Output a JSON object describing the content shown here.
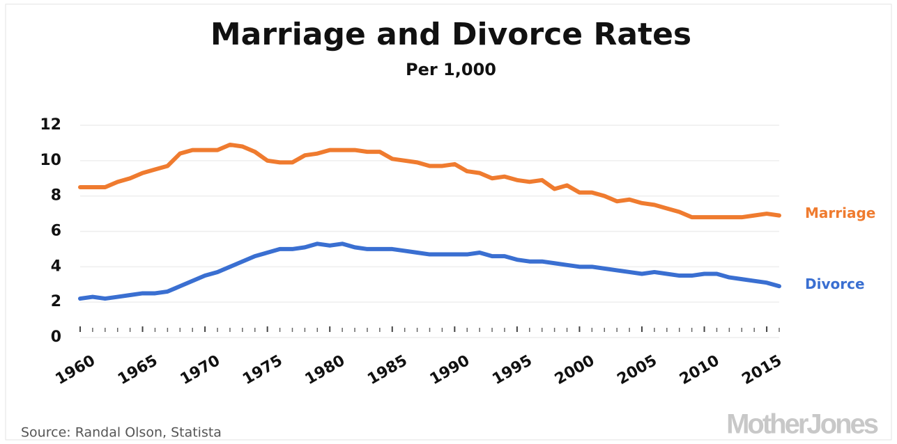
{
  "chart_data": {
    "type": "line",
    "title": "Marriage and Divorce Rates",
    "subtitle": "Per 1,000",
    "source": "Source: Randal Olson, Statista",
    "brand": "MotherJones",
    "x": [
      1960,
      1961,
      1962,
      1963,
      1964,
      1965,
      1966,
      1967,
      1968,
      1969,
      1970,
      1971,
      1972,
      1973,
      1974,
      1975,
      1976,
      1977,
      1978,
      1979,
      1980,
      1981,
      1982,
      1983,
      1984,
      1985,
      1986,
      1987,
      1988,
      1989,
      1990,
      1991,
      1992,
      1993,
      1994,
      1995,
      1996,
      1997,
      1998,
      1999,
      2000,
      2001,
      2002,
      2003,
      2004,
      2005,
      2006,
      2007,
      2008,
      2009,
      2010,
      2011,
      2012,
      2013,
      2014,
      2015,
      2016
    ],
    "series": [
      {
        "name": "Marriage",
        "color": "#ef7b2f",
        "values": [
          8.5,
          8.5,
          8.5,
          8.8,
          9.0,
          9.3,
          9.5,
          9.7,
          10.4,
          10.6,
          10.6,
          10.6,
          10.9,
          10.8,
          10.5,
          10.0,
          9.9,
          9.9,
          10.3,
          10.4,
          10.6,
          10.6,
          10.6,
          10.5,
          10.5,
          10.1,
          10.0,
          9.9,
          9.7,
          9.7,
          9.8,
          9.4,
          9.3,
          9.0,
          9.1,
          8.9,
          8.8,
          8.9,
          8.4,
          8.6,
          8.2,
          8.2,
          8.0,
          7.7,
          7.8,
          7.6,
          7.5,
          7.3,
          7.1,
          6.8,
          6.8,
          6.8,
          6.8,
          6.8,
          6.9,
          7.0,
          6.9
        ]
      },
      {
        "name": "Divorce",
        "color": "#3a6fd1",
        "values": [
          2.2,
          2.3,
          2.2,
          2.3,
          2.4,
          2.5,
          2.5,
          2.6,
          2.9,
          3.2,
          3.5,
          3.7,
          4.0,
          4.3,
          4.6,
          4.8,
          5.0,
          5.0,
          5.1,
          5.3,
          5.2,
          5.3,
          5.1,
          5.0,
          5.0,
          5.0,
          4.9,
          4.8,
          4.7,
          4.7,
          4.7,
          4.7,
          4.8,
          4.6,
          4.6,
          4.4,
          4.3,
          4.3,
          4.2,
          4.1,
          4.0,
          4.0,
          3.9,
          3.8,
          3.7,
          3.6,
          3.7,
          3.6,
          3.5,
          3.5,
          3.6,
          3.6,
          3.4,
          3.3,
          3.2,
          3.1,
          2.9
        ]
      }
    ],
    "xlim": [
      1960,
      2016
    ],
    "xticks": [
      1960,
      1965,
      1970,
      1975,
      1980,
      1985,
      1990,
      1995,
      2000,
      2005,
      2010,
      2015
    ],
    "ylim": [
      0,
      12
    ],
    "yticks": [
      0,
      2,
      4,
      6,
      8,
      10,
      12
    ],
    "grid": true
  }
}
